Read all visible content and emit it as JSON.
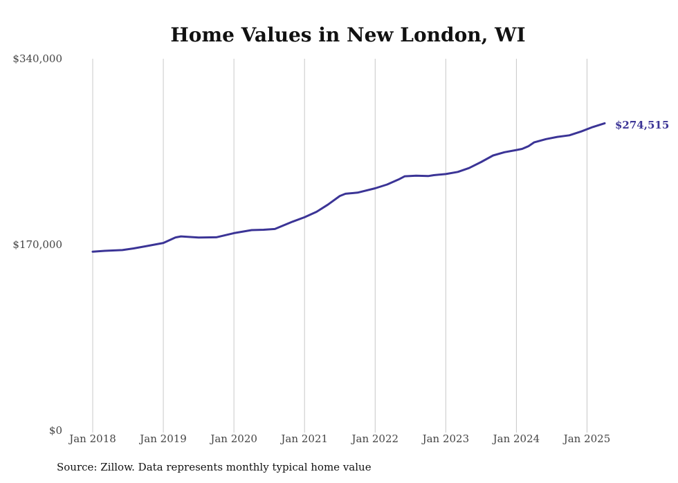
{
  "chart_data": {
    "type": "line",
    "title": "Home Values in New London, WI",
    "xlabel": "",
    "ylabel": "",
    "ylim": [
      0,
      340000
    ],
    "y_ticks": [
      {
        "value": 0,
        "label": "$0"
      },
      {
        "value": 170000,
        "label": "$170,000"
      },
      {
        "value": 340000,
        "label": "$340,000"
      }
    ],
    "x_ticks": [
      {
        "value": 2018.0,
        "label": "Jan 2018"
      },
      {
        "value": 2019.0,
        "label": "Jan 2019"
      },
      {
        "value": 2020.0,
        "label": "Jan 2020"
      },
      {
        "value": 2021.0,
        "label": "Jan 2021"
      },
      {
        "value": 2022.0,
        "label": "Jan 2022"
      },
      {
        "value": 2023.0,
        "label": "Jan 2023"
      },
      {
        "value": 2024.0,
        "label": "Jan 2024"
      },
      {
        "value": 2025.0,
        "label": "Jan 2025"
      }
    ],
    "xlim": [
      2018.0,
      2025.25
    ],
    "grid": "vertical",
    "line_color": "#3b3496",
    "end_label": "$274,515",
    "series": [
      {
        "points": [
          [
            2018.0,
            163500
          ],
          [
            2018.17,
            164300
          ],
          [
            2018.42,
            165000
          ],
          [
            2018.58,
            166500
          ],
          [
            2018.75,
            168500
          ],
          [
            2019.0,
            171500
          ],
          [
            2019.17,
            176500
          ],
          [
            2019.25,
            177500
          ],
          [
            2019.5,
            176500
          ],
          [
            2019.75,
            176700
          ],
          [
            2020.0,
            180500
          ],
          [
            2020.25,
            183300
          ],
          [
            2020.42,
            183600
          ],
          [
            2020.58,
            184300
          ],
          [
            2020.83,
            191000
          ],
          [
            2021.0,
            195000
          ],
          [
            2021.17,
            200000
          ],
          [
            2021.33,
            206500
          ],
          [
            2021.5,
            214500
          ],
          [
            2021.58,
            216500
          ],
          [
            2021.75,
            217500
          ],
          [
            2022.0,
            221500
          ],
          [
            2022.17,
            225000
          ],
          [
            2022.33,
            229500
          ],
          [
            2022.42,
            232500
          ],
          [
            2022.58,
            233000
          ],
          [
            2022.75,
            232700
          ],
          [
            2022.83,
            233500
          ],
          [
            2023.0,
            234500
          ],
          [
            2023.17,
            236500
          ],
          [
            2023.33,
            240000
          ],
          [
            2023.5,
            245500
          ],
          [
            2023.67,
            251500
          ],
          [
            2023.83,
            254500
          ],
          [
            2024.0,
            256500
          ],
          [
            2024.08,
            257500
          ],
          [
            2024.17,
            260000
          ],
          [
            2024.25,
            263500
          ],
          [
            2024.42,
            266500
          ],
          [
            2024.58,
            268500
          ],
          [
            2024.75,
            270000
          ],
          [
            2024.92,
            273500
          ],
          [
            2025.08,
            277500
          ],
          [
            2025.25,
            281000
          ]
        ]
      }
    ]
  },
  "source_note": "Source: Zillow. Data represents monthly typical home value"
}
